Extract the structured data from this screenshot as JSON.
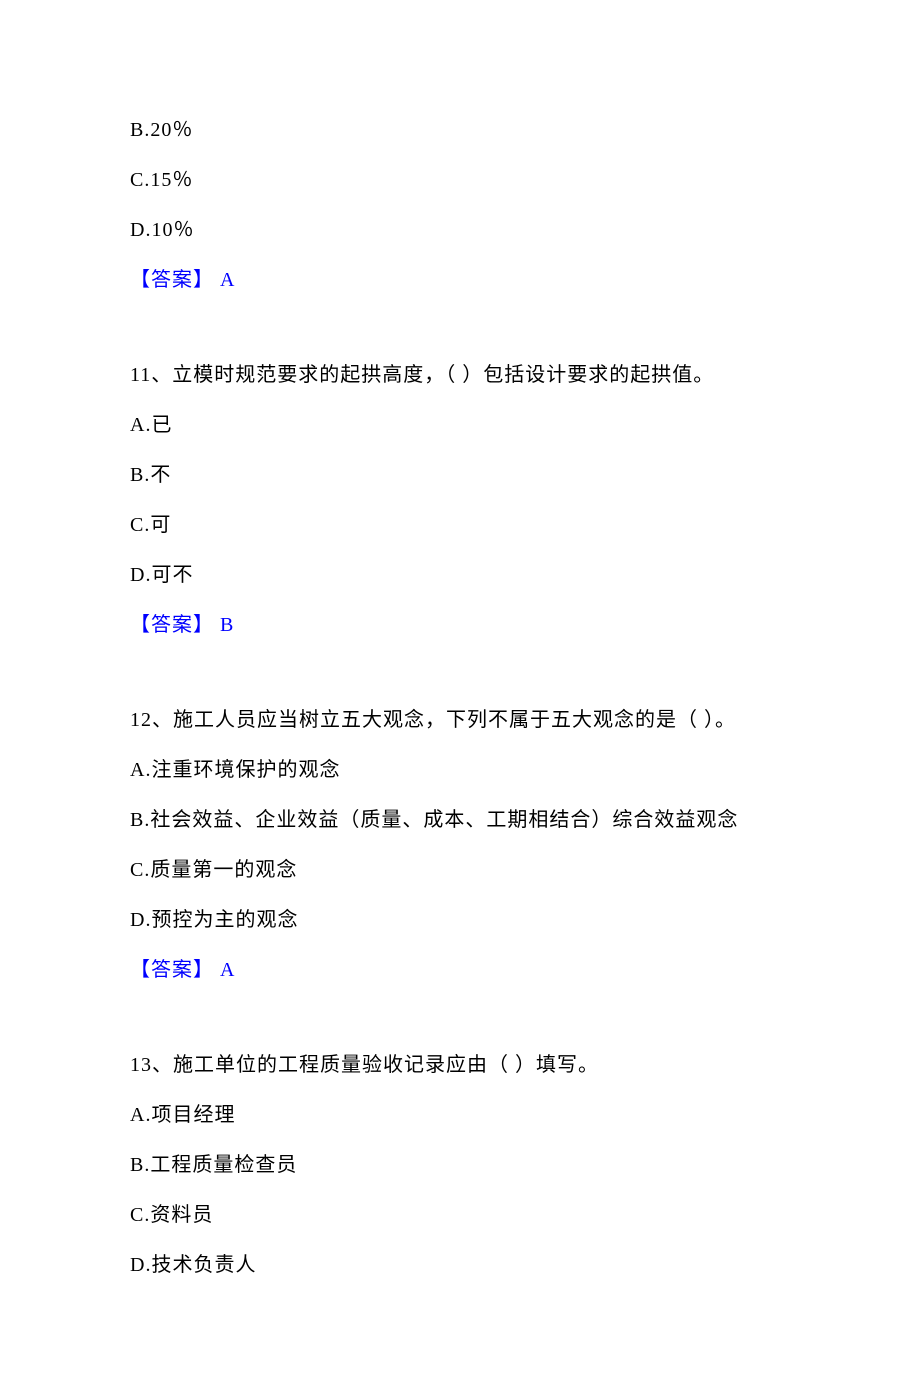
{
  "q10": {
    "options": {
      "b": "B.20％",
      "c": "C.15％",
      "d": "D.10％"
    },
    "answer_label": "【答案】 ",
    "answer_value": "A"
  },
  "q11": {
    "question": "11、立模时规范要求的起拱高度，（ ）包括设计要求的起拱值。",
    "options": {
      "a": "A.已",
      "b": "B.不",
      "c": "C.可",
      "d": "D.可不"
    },
    "answer_label": "【答案】 ",
    "answer_value": "B"
  },
  "q12": {
    "question": "12、施工人员应当树立五大观念，下列不属于五大观念的是（ ）。",
    "options": {
      "a": "A.注重环境保护的观念",
      "b": "B.社会效益、企业效益（质量、成本、工期相结合）综合效益观念",
      "c": "C.质量第一的观念",
      "d": "D.预控为主的观念"
    },
    "answer_label": "【答案】 ",
    "answer_value": "A"
  },
  "q13": {
    "question": "13、施工单位的工程质量验收记录应由（ ）填写。",
    "options": {
      "a": "A.项目经理",
      "b": "B.工程质量检查员",
      "c": "C.资料员",
      "d": "D.技术负责人"
    }
  }
}
